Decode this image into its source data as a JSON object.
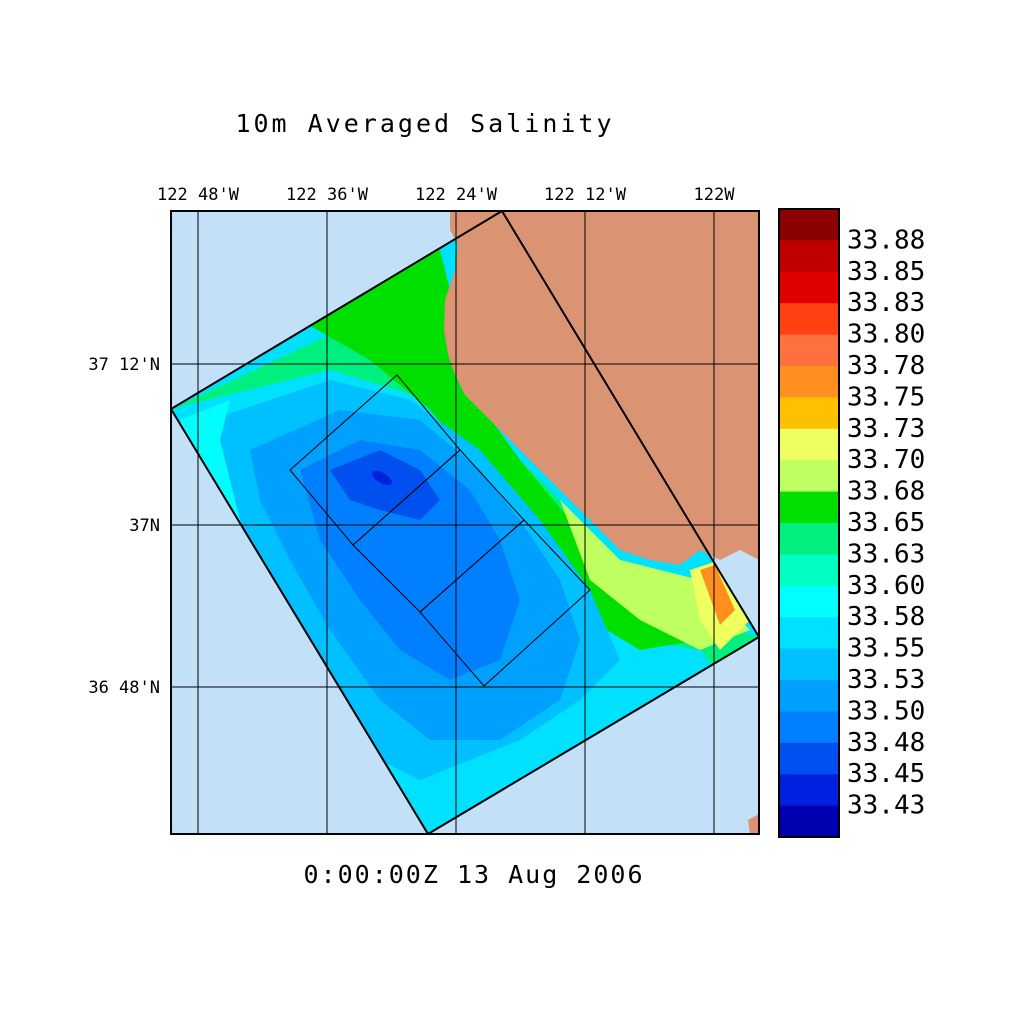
{
  "title": "10m Averaged Salinity",
  "timestamp": "0:00:00Z  13 Aug 2006",
  "lon_labels": [
    "122 48'W",
    "122 36'W",
    "122 24'W",
    "122 12'W",
    "122W"
  ],
  "lat_labels": [
    "37 12'N",
    "37N",
    "36 48'N"
  ],
  "colorbar": {
    "labels": [
      "33.88",
      "33.85",
      "33.83",
      "33.80",
      "33.78",
      "33.75",
      "33.73",
      "33.70",
      "33.68",
      "33.65",
      "33.63",
      "33.60",
      "33.58",
      "33.55",
      "33.53",
      "33.50",
      "33.48",
      "33.45",
      "33.43"
    ],
    "colors": [
      "#8b0000",
      "#c00000",
      "#e00000",
      "#ff4010",
      "#ff7040",
      "#ff9020",
      "#ffc000",
      "#f0ff60",
      "#c0ff60",
      "#00e000",
      "#00f080",
      "#00ffc0",
      "#00ffff",
      "#00e0ff",
      "#00c0ff",
      "#00a0ff",
      "#0080ff",
      "#0050f0",
      "#0020e0",
      "#0000b0"
    ]
  },
  "colors": {
    "water": "#c2e0f8",
    "land": "#da9474"
  }
}
